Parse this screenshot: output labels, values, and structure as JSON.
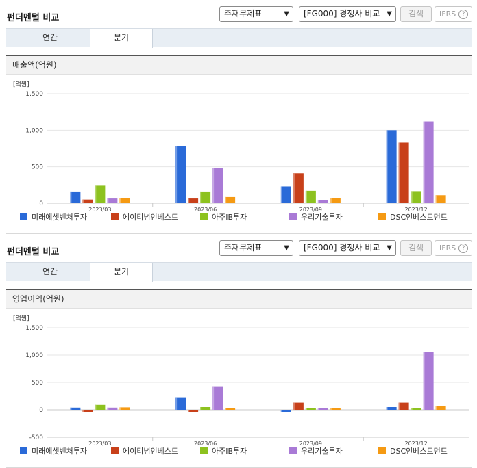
{
  "sections": [
    {
      "title": "펀더멘털 비교",
      "select_statement": "주재무제표",
      "select_compare": "[FG000] 경쟁사 비교",
      "search_label": "검색",
      "ifrs_label": "IFRS",
      "ifrs_help": "?",
      "tabs": [
        "연간",
        "분기"
      ],
      "chart_title": "매출액(억원)"
    },
    {
      "title": "펀더멘털 비교",
      "select_statement": "주재무제표",
      "select_compare": "[FG000] 경쟁사 비교",
      "search_label": "검색",
      "ifrs_label": "IFRS",
      "ifrs_help": "?",
      "tabs": [
        "연간",
        "분기"
      ],
      "chart_title": "영업이익(억원)"
    }
  ],
  "colors": [
    "#2a6ad8",
    "#c8401a",
    "#8dc21f",
    "#a97ad6",
    "#f59a13"
  ],
  "chart_data": [
    {
      "type": "bar",
      "unit_label": "[억원]",
      "categories": [
        "2023/03",
        "2023/06",
        "2023/09",
        "2023/12"
      ],
      "ylim": [
        0,
        1500
      ],
      "yticks": [
        0,
        500,
        1000,
        1500
      ],
      "ytick_labels": [
        "0",
        "500",
        "1,000",
        "1,500"
      ],
      "series": [
        {
          "name": "미래에셋벤처투자",
          "values": [
            160,
            780,
            230,
            1000
          ]
        },
        {
          "name": "에이티넘인베스트",
          "values": [
            50,
            65,
            410,
            830
          ]
        },
        {
          "name": "아주IB투자",
          "values": [
            240,
            160,
            170,
            165
          ]
        },
        {
          "name": "우리기술투자",
          "values": [
            65,
            480,
            40,
            1120
          ]
        },
        {
          "name": "DSC인베스트먼트",
          "values": [
            75,
            85,
            70,
            110
          ]
        }
      ],
      "grid": true,
      "legend": "bottom"
    },
    {
      "type": "bar",
      "unit_label": "[억원]",
      "categories": [
        "2023/03",
        "2023/06",
        "2023/09",
        "2023/12"
      ],
      "ylim": [
        -500,
        1500
      ],
      "yticks": [
        -500,
        0,
        500,
        1000,
        1500
      ],
      "ytick_labels": [
        "-500",
        "0",
        "500",
        "1,000",
        "1,500"
      ],
      "series": [
        {
          "name": "미래에셋벤처투자",
          "values": [
            40,
            230,
            -20,
            50
          ]
        },
        {
          "name": "에이티넘인베스트",
          "values": [
            -15,
            -30,
            130,
            130
          ]
        },
        {
          "name": "아주IB투자",
          "values": [
            90,
            50,
            0,
            20
          ]
        },
        {
          "name": "우리기술투자",
          "values": [
            40,
            430,
            0,
            1060
          ]
        },
        {
          "name": "DSC인베스트먼트",
          "values": [
            45,
            30,
            25,
            70
          ]
        }
      ],
      "grid": true,
      "legend": "bottom"
    }
  ]
}
